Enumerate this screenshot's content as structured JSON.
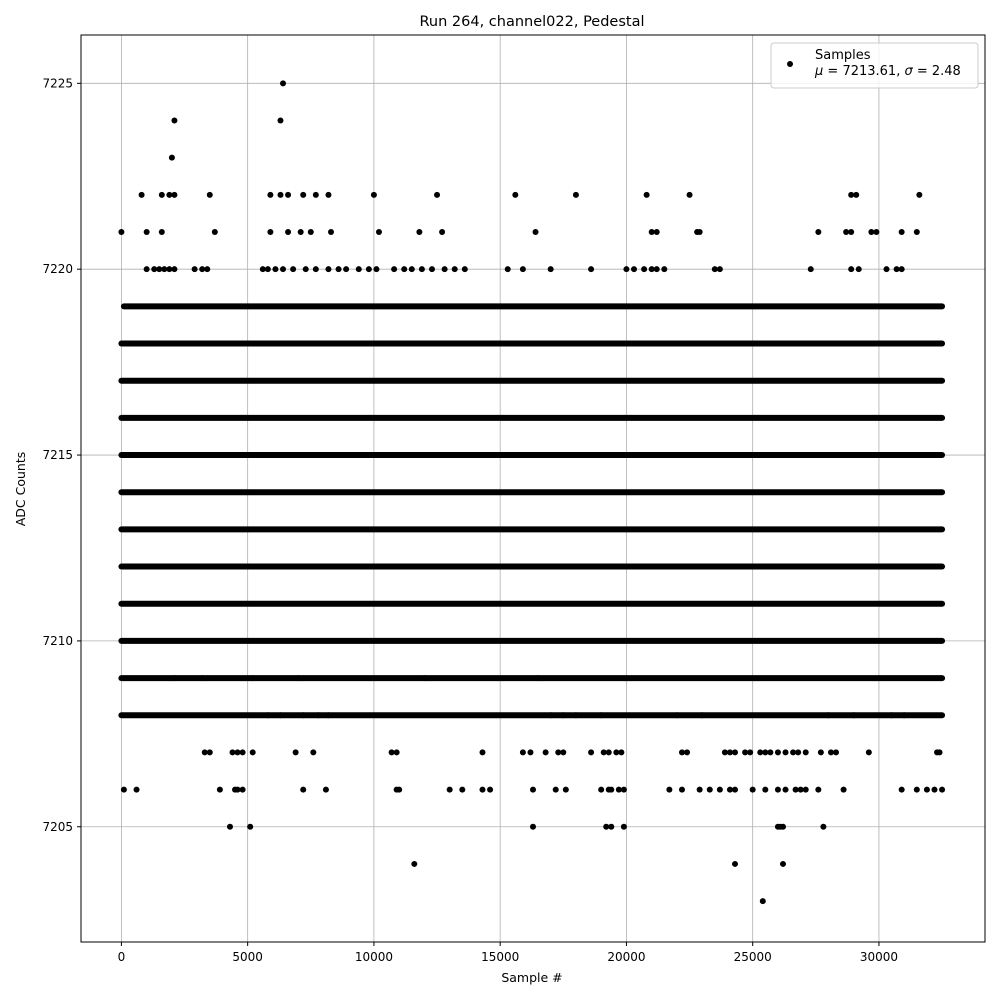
{
  "chart_data": {
    "type": "scatter",
    "title": "Run 264, channel022, Pedestal",
    "xlabel": "Sample #",
    "ylabel": "ADC Counts",
    "xlim": [
      -1600,
      34200
    ],
    "ylim": [
      7201.9,
      7226.3
    ],
    "xticks": [
      0,
      5000,
      10000,
      15000,
      20000,
      25000,
      30000
    ],
    "yticks": [
      7205,
      7210,
      7215,
      7220,
      7225
    ],
    "grid": true,
    "marker_color": "#000000",
    "legend": {
      "placement": "top-right",
      "series_name": "Samples",
      "stats_line": {
        "mu_symbol": "μ",
        "mu_text": " = 7213.61, ",
        "sigma_symbol": "σ",
        "sigma_text": " = 2.48"
      }
    },
    "series": [
      {
        "name": "Samples",
        "n_samples": 32500,
        "mean": 7213.61,
        "std": 2.48,
        "dense_levels": [
          {
            "y": 7210,
            "x_range": [
              0,
              32500
            ]
          },
          {
            "y": 7211,
            "x_range": [
              0,
              32500
            ]
          },
          {
            "y": 7212,
            "x_range": [
              0,
              32500
            ]
          },
          {
            "y": 7213,
            "x_range": [
              0,
              32500
            ]
          },
          {
            "y": 7214,
            "x_range": [
              0,
              32500
            ]
          },
          {
            "y": 7215,
            "x_range": [
              0,
              32500
            ]
          },
          {
            "y": 7216,
            "x_range": [
              0,
              32500
            ]
          },
          {
            "y": 7217,
            "x_range": [
              0,
              32500
            ]
          },
          {
            "y": 7218,
            "x_range": [
              0,
              32500
            ]
          },
          {
            "y": 7219,
            "x_range": [
              100,
              32500
            ]
          },
          {
            "y": 7209,
            "x_range": [
              0,
              32500
            ]
          },
          {
            "y": 7208,
            "x_range": [
              0,
              32500
            ]
          }
        ],
        "sparse_points": [
          [
            5800,
            7208
          ],
          [
            6300,
            7208
          ],
          [
            7200,
            7208
          ],
          [
            7800,
            7208
          ],
          [
            8200,
            7208
          ],
          [
            17000,
            7208
          ],
          [
            17500,
            7208
          ],
          [
            18000,
            7208
          ],
          [
            19000,
            7208
          ],
          [
            22000,
            7208
          ],
          [
            23000,
            7208
          ],
          [
            28000,
            7208
          ],
          [
            29000,
            7208
          ],
          [
            30500,
            7208
          ],
          [
            31000,
            7208
          ],
          [
            2100,
            7209
          ],
          [
            3200,
            7209
          ],
          [
            5200,
            7209
          ],
          [
            7000,
            7209
          ],
          [
            12000,
            7209
          ],
          [
            16500,
            7209
          ],
          [
            3300,
            7207
          ],
          [
            3500,
            7207
          ],
          [
            4400,
            7207
          ],
          [
            4600,
            7207
          ],
          [
            4800,
            7207
          ],
          [
            5200,
            7207
          ],
          [
            6900,
            7207
          ],
          [
            7600,
            7207
          ],
          [
            10700,
            7207
          ],
          [
            10900,
            7207
          ],
          [
            14300,
            7207
          ],
          [
            15900,
            7207
          ],
          [
            16200,
            7207
          ],
          [
            16800,
            7207
          ],
          [
            17300,
            7207
          ],
          [
            17500,
            7207
          ],
          [
            18600,
            7207
          ],
          [
            19100,
            7207
          ],
          [
            19300,
            7207
          ],
          [
            19600,
            7207
          ],
          [
            19800,
            7207
          ],
          [
            22200,
            7207
          ],
          [
            22400,
            7207
          ],
          [
            23900,
            7207
          ],
          [
            24100,
            7207
          ],
          [
            24300,
            7207
          ],
          [
            24700,
            7207
          ],
          [
            24900,
            7207
          ],
          [
            25300,
            7207
          ],
          [
            25500,
            7207
          ],
          [
            25700,
            7207
          ],
          [
            26000,
            7207
          ],
          [
            26300,
            7207
          ],
          [
            26600,
            7207
          ],
          [
            26800,
            7207
          ],
          [
            27100,
            7207
          ],
          [
            27700,
            7207
          ],
          [
            28100,
            7207
          ],
          [
            28300,
            7207
          ],
          [
            29600,
            7207
          ],
          [
            32300,
            7207
          ],
          [
            32400,
            7207
          ],
          [
            100,
            7206
          ],
          [
            600,
            7206
          ],
          [
            3900,
            7206
          ],
          [
            4500,
            7206
          ],
          [
            4600,
            7206
          ],
          [
            4800,
            7206
          ],
          [
            7200,
            7206
          ],
          [
            8100,
            7206
          ],
          [
            10900,
            7206
          ],
          [
            11000,
            7206
          ],
          [
            13000,
            7206
          ],
          [
            13500,
            7206
          ],
          [
            14300,
            7206
          ],
          [
            14600,
            7206
          ],
          [
            16300,
            7206
          ],
          [
            17200,
            7206
          ],
          [
            17600,
            7206
          ],
          [
            19000,
            7206
          ],
          [
            19300,
            7206
          ],
          [
            19400,
            7206
          ],
          [
            19700,
            7206
          ],
          [
            19900,
            7206
          ],
          [
            21700,
            7206
          ],
          [
            22200,
            7206
          ],
          [
            22900,
            7206
          ],
          [
            23300,
            7206
          ],
          [
            23700,
            7206
          ],
          [
            24100,
            7206
          ],
          [
            24300,
            7206
          ],
          [
            25000,
            7206
          ],
          [
            25500,
            7206
          ],
          [
            26000,
            7206
          ],
          [
            26300,
            7206
          ],
          [
            26700,
            7206
          ],
          [
            26900,
            7206
          ],
          [
            27100,
            7206
          ],
          [
            27600,
            7206
          ],
          [
            28600,
            7206
          ],
          [
            30900,
            7206
          ],
          [
            31500,
            7206
          ],
          [
            31900,
            7206
          ],
          [
            32200,
            7206
          ],
          [
            32500,
            7206
          ],
          [
            4300,
            7205
          ],
          [
            5100,
            7205
          ],
          [
            16300,
            7205
          ],
          [
            19200,
            7205
          ],
          [
            19400,
            7205
          ],
          [
            19900,
            7205
          ],
          [
            26000,
            7205
          ],
          [
            26100,
            7205
          ],
          [
            26200,
            7205
          ],
          [
            27800,
            7205
          ],
          [
            11600,
            7204
          ],
          [
            24300,
            7204
          ],
          [
            26200,
            7204
          ],
          [
            25400,
            7203
          ],
          [
            1000,
            7220
          ],
          [
            1300,
            7220
          ],
          [
            1500,
            7220
          ],
          [
            1700,
            7220
          ],
          [
            1900,
            7220
          ],
          [
            2100,
            7220
          ],
          [
            2900,
            7220
          ],
          [
            3200,
            7220
          ],
          [
            3400,
            7220
          ],
          [
            5600,
            7220
          ],
          [
            5800,
            7220
          ],
          [
            6100,
            7220
          ],
          [
            6400,
            7220
          ],
          [
            6800,
            7220
          ],
          [
            7300,
            7220
          ],
          [
            7700,
            7220
          ],
          [
            8200,
            7220
          ],
          [
            8600,
            7220
          ],
          [
            8900,
            7220
          ],
          [
            9400,
            7220
          ],
          [
            9800,
            7220
          ],
          [
            10100,
            7220
          ],
          [
            10800,
            7220
          ],
          [
            11200,
            7220
          ],
          [
            11500,
            7220
          ],
          [
            11900,
            7220
          ],
          [
            12300,
            7220
          ],
          [
            12800,
            7220
          ],
          [
            13200,
            7220
          ],
          [
            13600,
            7220
          ],
          [
            15300,
            7220
          ],
          [
            15900,
            7220
          ],
          [
            17000,
            7220
          ],
          [
            18600,
            7220
          ],
          [
            20000,
            7220
          ],
          [
            20300,
            7220
          ],
          [
            20700,
            7220
          ],
          [
            21000,
            7220
          ],
          [
            21200,
            7220
          ],
          [
            21500,
            7220
          ],
          [
            23500,
            7220
          ],
          [
            23700,
            7220
          ],
          [
            27300,
            7220
          ],
          [
            28900,
            7220
          ],
          [
            29200,
            7220
          ],
          [
            30300,
            7220
          ],
          [
            30700,
            7220
          ],
          [
            30900,
            7220
          ],
          [
            0,
            7221
          ],
          [
            1000,
            7221
          ],
          [
            1600,
            7221
          ],
          [
            3700,
            7221
          ],
          [
            5900,
            7221
          ],
          [
            6600,
            7221
          ],
          [
            7100,
            7221
          ],
          [
            7500,
            7221
          ],
          [
            8300,
            7221
          ],
          [
            10200,
            7221
          ],
          [
            11800,
            7221
          ],
          [
            12700,
            7221
          ],
          [
            16400,
            7221
          ],
          [
            21000,
            7221
          ],
          [
            21200,
            7221
          ],
          [
            22800,
            7221
          ],
          [
            22900,
            7221
          ],
          [
            27600,
            7221
          ],
          [
            28700,
            7221
          ],
          [
            28900,
            7221
          ],
          [
            29700,
            7221
          ],
          [
            29900,
            7221
          ],
          [
            30900,
            7221
          ],
          [
            31500,
            7221
          ],
          [
            800,
            7222
          ],
          [
            1600,
            7222
          ],
          [
            1900,
            7222
          ],
          [
            2100,
            7222
          ],
          [
            3500,
            7222
          ],
          [
            5900,
            7222
          ],
          [
            6300,
            7222
          ],
          [
            6600,
            7222
          ],
          [
            7200,
            7222
          ],
          [
            7700,
            7222
          ],
          [
            8200,
            7222
          ],
          [
            10000,
            7222
          ],
          [
            12500,
            7222
          ],
          [
            15600,
            7222
          ],
          [
            18000,
            7222
          ],
          [
            20800,
            7222
          ],
          [
            22500,
            7222
          ],
          [
            28900,
            7222
          ],
          [
            29100,
            7222
          ],
          [
            31600,
            7222
          ],
          [
            2000,
            7223
          ],
          [
            2100,
            7224
          ],
          [
            6300,
            7224
          ],
          [
            6400,
            7225
          ]
        ]
      }
    ]
  }
}
